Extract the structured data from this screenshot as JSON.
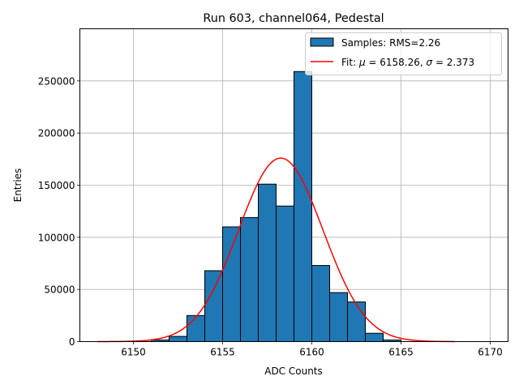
{
  "chart_data": {
    "type": "bar",
    "title": "Run 603, channel064, Pedestal",
    "xlabel": "ADC Counts",
    "ylabel": "Entries",
    "xlim": [
      6147,
      6171
    ],
    "ylim": [
      0,
      300000
    ],
    "xticks": [
      6150,
      6155,
      6160,
      6165,
      6170
    ],
    "yticks": [
      0,
      50000,
      100000,
      150000,
      200000,
      250000
    ],
    "grid": true,
    "legend_position": "top-right",
    "histogram": {
      "name": "Samples: RMS=2.26",
      "color": "#1f77b4",
      "bin_width": 1,
      "bins": [
        {
          "left": 6151,
          "count": 1500
        },
        {
          "left": 6152,
          "count": 5000
        },
        {
          "left": 6153,
          "count": 25000
        },
        {
          "left": 6154,
          "count": 68000
        },
        {
          "left": 6155,
          "count": 110000
        },
        {
          "left": 6156,
          "count": 119000
        },
        {
          "left": 6157,
          "count": 151000
        },
        {
          "left": 6158,
          "count": 130000
        },
        {
          "left": 6159,
          "count": 259000
        },
        {
          "left": 6160,
          "count": 73000
        },
        {
          "left": 6161,
          "count": 47000
        },
        {
          "left": 6162,
          "count": 38000
        },
        {
          "left": 6163,
          "count": 8000
        },
        {
          "left": 6164,
          "count": 1500
        }
      ]
    },
    "fit": {
      "label_prefix": "Fit: ",
      "mu_symbol": "μ",
      "sigma_symbol": "σ",
      "mu_text": " = 6158.26, ",
      "sigma_text": " = 2.373",
      "color": "#ff0000",
      "mu": 6158.26,
      "sigma": 2.373,
      "amplitude": 176000,
      "x_range": [
        6148,
        6168
      ]
    }
  }
}
